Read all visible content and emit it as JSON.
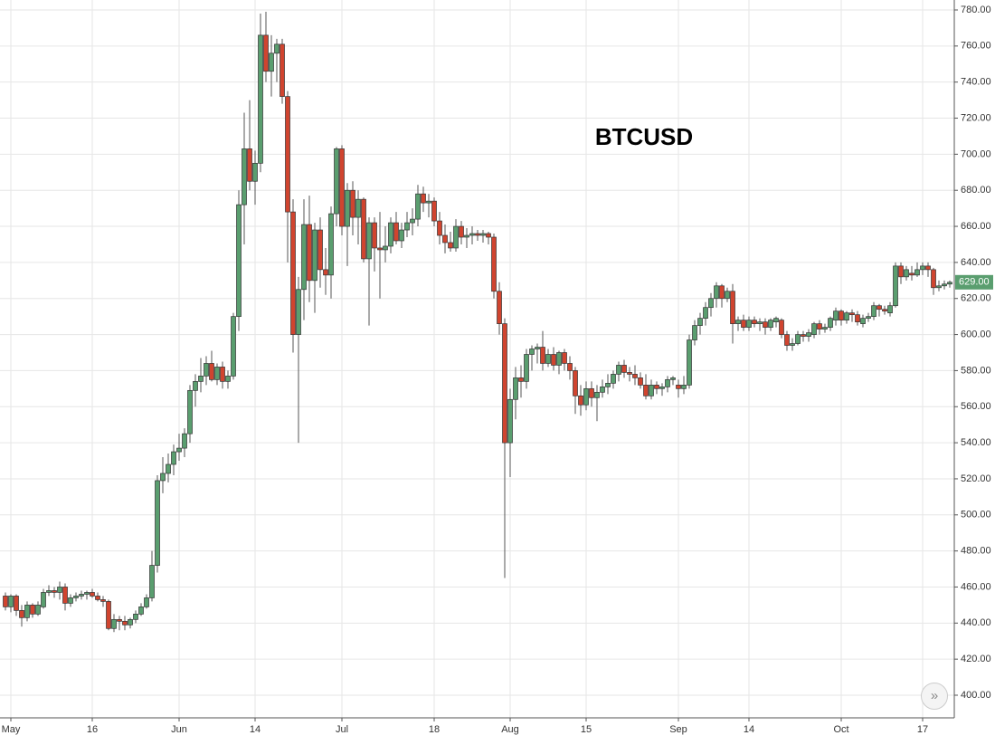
{
  "chart_data": {
    "type": "candlestick",
    "title": "BTCUSD",
    "up_color": "#5a9e6f",
    "down_color": "#d0442f",
    "grid": true,
    "ylim": [
      400,
      780
    ],
    "yticks": [
      {
        "value": 400,
        "label": "400.00"
      },
      {
        "value": 420,
        "label": "420.00"
      },
      {
        "value": 440,
        "label": "440.00"
      },
      {
        "value": 460,
        "label": "460.00"
      },
      {
        "value": 480,
        "label": "480.00"
      },
      {
        "value": 500,
        "label": "500.00"
      },
      {
        "value": 520,
        "label": "520.00"
      },
      {
        "value": 540,
        "label": "540.00"
      },
      {
        "value": 560,
        "label": "560.00"
      },
      {
        "value": 580,
        "label": "580.00"
      },
      {
        "value": 600,
        "label": "600.00"
      },
      {
        "value": 620,
        "label": "620.00"
      },
      {
        "value": 640,
        "label": "640.00"
      },
      {
        "value": 660,
        "label": "660.00"
      },
      {
        "value": 680,
        "label": "680.00"
      },
      {
        "value": 700,
        "label": "700.00"
      },
      {
        "value": 720,
        "label": "720.00"
      },
      {
        "value": 740,
        "label": "740.00"
      },
      {
        "value": 760,
        "label": "760.00"
      },
      {
        "value": 780,
        "label": "780.00"
      }
    ],
    "last_price": {
      "value": 629,
      "label": "629.00"
    },
    "categories": [
      null,
      "May",
      null,
      null,
      null,
      null,
      null,
      null,
      null,
      null,
      null,
      null,
      null,
      null,
      null,
      null,
      "16",
      null,
      null,
      null,
      null,
      null,
      null,
      null,
      null,
      null,
      null,
      null,
      null,
      null,
      null,
      null,
      "Jun",
      null,
      null,
      null,
      null,
      null,
      null,
      null,
      null,
      null,
      null,
      null,
      null,
      null,
      "14",
      null,
      null,
      null,
      null,
      null,
      null,
      null,
      null,
      null,
      null,
      null,
      null,
      null,
      null,
      null,
      "Jul",
      null,
      null,
      null,
      null,
      null,
      null,
      null,
      null,
      null,
      null,
      null,
      null,
      null,
      null,
      null,
      null,
      "18",
      null,
      null,
      null,
      null,
      null,
      null,
      null,
      null,
      null,
      null,
      null,
      null,
      null,
      "Aug",
      null,
      null,
      null,
      null,
      null,
      null,
      null,
      null,
      null,
      null,
      null,
      null,
      null,
      "15",
      null,
      null,
      null,
      null,
      null,
      null,
      null,
      null,
      null,
      null,
      null,
      null,
      null,
      null,
      null,
      null,
      "Sep",
      null,
      null,
      null,
      null,
      null,
      null,
      null,
      null,
      null,
      null,
      null,
      null,
      "14",
      null,
      null,
      null,
      null,
      null,
      null,
      null,
      null,
      null,
      null,
      null,
      null,
      null,
      null,
      null,
      null,
      "Oct",
      null,
      null,
      null,
      null,
      null,
      null,
      null,
      null,
      null,
      null,
      null,
      null,
      null,
      null,
      "17",
      null,
      null,
      null,
      null,
      null
    ],
    "values": [
      [
        455,
        457,
        447,
        449
      ],
      [
        449,
        456,
        446,
        455
      ],
      [
        455,
        456,
        444,
        447
      ],
      [
        447,
        450,
        438,
        443
      ],
      [
        443,
        452,
        441,
        450
      ],
      [
        450,
        451,
        443,
        445
      ],
      [
        445,
        452,
        444,
        450
      ],
      [
        449,
        459,
        448,
        457
      ],
      [
        457,
        461,
        455,
        458
      ],
      [
        458,
        460,
        454,
        457
      ],
      [
        457,
        463,
        453,
        460
      ],
      [
        460,
        462,
        447,
        451
      ],
      [
        451,
        456,
        449,
        454
      ],
      [
        454,
        457,
        452,
        455
      ],
      [
        455,
        458,
        453,
        456
      ],
      [
        456,
        458,
        453,
        457
      ],
      [
        457,
        459,
        454,
        455
      ],
      [
        455,
        457,
        452,
        453
      ],
      [
        453,
        455,
        449,
        452
      ],
      [
        452,
        453,
        436,
        437
      ],
      [
        437,
        445,
        435,
        442
      ],
      [
        442,
        444,
        436,
        441
      ],
      [
        441,
        444,
        436,
        439
      ],
      [
        439,
        443,
        437,
        442
      ],
      [
        442,
        447,
        440,
        445
      ],
      [
        445,
        451,
        444,
        449
      ],
      [
        449,
        456,
        448,
        454
      ],
      [
        454,
        480,
        452,
        472
      ],
      [
        472,
        522,
        468,
        519
      ],
      [
        519,
        532,
        512,
        523
      ],
      [
        523,
        534,
        518,
        528
      ],
      [
        528,
        539,
        522,
        535
      ],
      [
        535,
        545,
        530,
        537
      ],
      [
        537,
        548,
        532,
        545
      ],
      [
        545,
        572,
        540,
        569
      ],
      [
        569,
        578,
        560,
        574
      ],
      [
        574,
        587,
        568,
        577
      ],
      [
        577,
        588,
        572,
        584
      ],
      [
        584,
        591,
        574,
        575
      ],
      [
        575,
        584,
        572,
        582
      ],
      [
        582,
        585,
        570,
        574
      ],
      [
        574,
        580,
        570,
        577
      ],
      [
        577,
        612,
        575,
        610
      ],
      [
        610,
        680,
        602,
        672
      ],
      [
        672,
        723,
        650,
        703
      ],
      [
        703,
        730,
        680,
        685
      ],
      [
        685,
        702,
        672,
        695
      ],
      [
        695,
        778,
        690,
        766
      ],
      [
        766,
        779,
        740,
        746
      ],
      [
        746,
        766,
        732,
        756
      ],
      [
        756,
        764,
        740,
        761
      ],
      [
        761,
        764,
        728,
        732
      ],
      [
        732,
        735,
        640,
        668
      ],
      [
        668,
        675,
        590,
        600
      ],
      [
        600,
        632,
        540,
        625
      ],
      [
        625,
        675,
        608,
        661
      ],
      [
        661,
        677,
        618,
        630
      ],
      [
        630,
        662,
        612,
        658
      ],
      [
        658,
        665,
        626,
        636
      ],
      [
        636,
        648,
        622,
        633
      ],
      [
        633,
        671,
        620,
        667
      ],
      [
        667,
        704,
        660,
        703
      ],
      [
        703,
        705,
        655,
        660
      ],
      [
        660,
        684,
        638,
        680
      ],
      [
        680,
        685,
        655,
        665
      ],
      [
        665,
        680,
        650,
        675
      ],
      [
        675,
        676,
        640,
        642
      ],
      [
        642,
        665,
        605,
        662
      ],
      [
        662,
        665,
        635,
        648
      ],
      [
        648,
        668,
        620,
        647
      ],
      [
        647,
        660,
        640,
        649
      ],
      [
        649,
        665,
        645,
        662
      ],
      [
        662,
        668,
        650,
        652
      ],
      [
        652,
        662,
        648,
        658
      ],
      [
        658,
        668,
        654,
        662
      ],
      [
        662,
        670,
        655,
        664
      ],
      [
        664,
        683,
        660,
        678
      ],
      [
        678,
        682,
        668,
        673
      ],
      [
        673,
        678,
        665,
        674
      ],
      [
        674,
        676,
        660,
        663
      ],
      [
        663,
        668,
        650,
        655
      ],
      [
        655,
        661,
        645,
        651
      ],
      [
        651,
        657,
        646,
        648
      ],
      [
        648,
        664,
        646,
        660
      ],
      [
        660,
        663,
        650,
        654
      ],
      [
        654,
        659,
        648,
        655
      ],
      [
        655,
        660,
        650,
        656
      ],
      [
        656,
        658,
        652,
        655
      ],
      [
        655,
        658,
        651,
        656
      ],
      [
        656,
        657,
        650,
        654
      ],
      [
        654,
        656,
        620,
        624
      ],
      [
        624,
        629,
        600,
        606
      ],
      [
        606,
        609,
        465,
        540
      ],
      [
        540,
        570,
        521,
        564
      ],
      [
        564,
        582,
        553,
        576
      ],
      [
        576,
        583,
        565,
        574
      ],
      [
        574,
        592,
        570,
        589
      ],
      [
        589,
        594,
        580,
        592
      ],
      [
        592,
        595,
        584,
        593
      ],
      [
        593,
        602,
        580,
        584
      ],
      [
        584,
        592,
        582,
        589
      ],
      [
        589,
        593,
        580,
        583
      ],
      [
        583,
        591,
        578,
        590
      ],
      [
        590,
        592,
        580,
        584
      ],
      [
        584,
        588,
        575,
        580
      ],
      [
        580,
        582,
        556,
        566
      ],
      [
        566,
        572,
        555,
        561
      ],
      [
        561,
        574,
        558,
        570
      ],
      [
        570,
        574,
        560,
        565
      ],
      [
        565,
        572,
        552,
        568
      ],
      [
        568,
        575,
        565,
        571
      ],
      [
        571,
        578,
        567,
        573
      ],
      [
        573,
        580,
        570,
        578
      ],
      [
        578,
        585,
        574,
        583
      ],
      [
        583,
        586,
        576,
        579
      ],
      [
        579,
        582,
        574,
        578
      ],
      [
        578,
        583,
        572,
        576
      ],
      [
        576,
        579,
        570,
        572
      ],
      [
        572,
        578,
        564,
        566
      ],
      [
        566,
        575,
        564,
        572
      ],
      [
        572,
        574,
        567,
        570
      ],
      [
        570,
        573,
        566,
        571
      ],
      [
        571,
        577,
        568,
        575
      ],
      [
        575,
        577,
        572,
        576
      ],
      [
        572,
        575,
        565,
        570
      ],
      [
        570,
        577,
        567,
        572
      ],
      [
        572,
        600,
        570,
        597
      ],
      [
        597,
        608,
        594,
        605
      ],
      [
        605,
        612,
        600,
        609
      ],
      [
        609,
        618,
        605,
        615
      ],
      [
        615,
        623,
        610,
        620
      ],
      [
        620,
        629,
        615,
        627
      ],
      [
        627,
        628,
        615,
        620
      ],
      [
        620,
        626,
        618,
        624
      ],
      [
        624,
        628,
        595,
        606
      ],
      [
        606,
        610,
        602,
        608
      ],
      [
        608,
        611,
        602,
        604
      ],
      [
        604,
        610,
        602,
        608
      ],
      [
        608,
        610,
        604,
        606
      ],
      [
        606,
        609,
        602,
        607
      ],
      [
        607,
        609,
        600,
        604
      ],
      [
        604,
        609,
        602,
        608
      ],
      [
        607,
        610,
        604,
        609
      ],
      [
        608,
        609,
        598,
        600
      ],
      [
        600,
        602,
        591,
        594
      ],
      [
        594,
        598,
        591,
        595
      ],
      [
        595,
        602,
        594,
        600
      ],
      [
        600,
        602,
        596,
        599
      ],
      [
        599,
        603,
        596,
        601
      ],
      [
        600,
        607,
        598,
        606
      ],
      [
        606,
        608,
        600,
        603
      ],
      [
        603,
        606,
        601,
        604
      ],
      [
        604,
        610,
        602,
        609
      ],
      [
        608,
        615,
        605,
        613
      ],
      [
        613,
        614,
        605,
        608
      ],
      [
        608,
        613,
        606,
        612
      ],
      [
        612,
        614,
        607,
        611
      ],
      [
        611,
        613,
        605,
        607
      ],
      [
        606,
        611,
        604,
        609
      ],
      [
        609,
        612,
        607,
        610
      ],
      [
        610,
        618,
        608,
        616
      ],
      [
        616,
        617,
        610,
        614
      ],
      [
        614,
        616,
        611,
        613
      ],
      [
        612,
        618,
        610,
        616
      ],
      [
        616,
        640,
        615,
        638
      ],
      [
        638,
        640,
        628,
        632
      ],
      [
        632,
        638,
        630,
        636
      ],
      [
        634,
        638,
        630,
        633
      ],
      [
        633,
        640,
        632,
        636
      ],
      [
        636,
        640,
        633,
        638
      ],
      [
        638,
        640,
        632,
        636
      ],
      [
        636,
        637,
        622,
        626
      ],
      [
        626,
        630,
        624,
        627
      ],
      [
        627,
        630,
        625,
        628
      ],
      [
        628,
        630,
        626,
        629
      ]
    ]
  }
}
